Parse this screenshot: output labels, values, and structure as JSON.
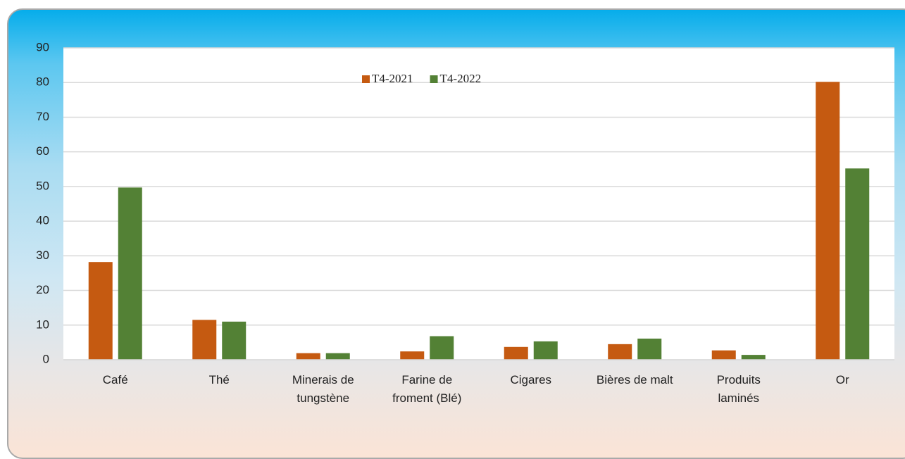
{
  "chart_data": {
    "type": "bar",
    "categories": [
      "Café",
      "Thé",
      "Minerais de\ntungstène",
      "Farine de\nfroment (Blé)",
      "Cigares",
      "Bières de malt",
      "Produits\nlaminés",
      "Or"
    ],
    "series": [
      {
        "name": "T4-2021",
        "color": "#c55a11",
        "values": [
          28.2,
          11.5,
          1.9,
          2.4,
          3.7,
          4.5,
          2.7,
          80.2
        ]
      },
      {
        "name": "T4-2022",
        "color": "#538135",
        "values": [
          49.7,
          11.0,
          1.9,
          6.8,
          5.3,
          6.1,
          1.4,
          55.2
        ]
      }
    ],
    "ylim": [
      0,
      90
    ],
    "yticks": [
      0,
      10,
      20,
      30,
      40,
      50,
      60,
      70,
      80,
      90
    ],
    "grid": true,
    "legend": "top"
  }
}
